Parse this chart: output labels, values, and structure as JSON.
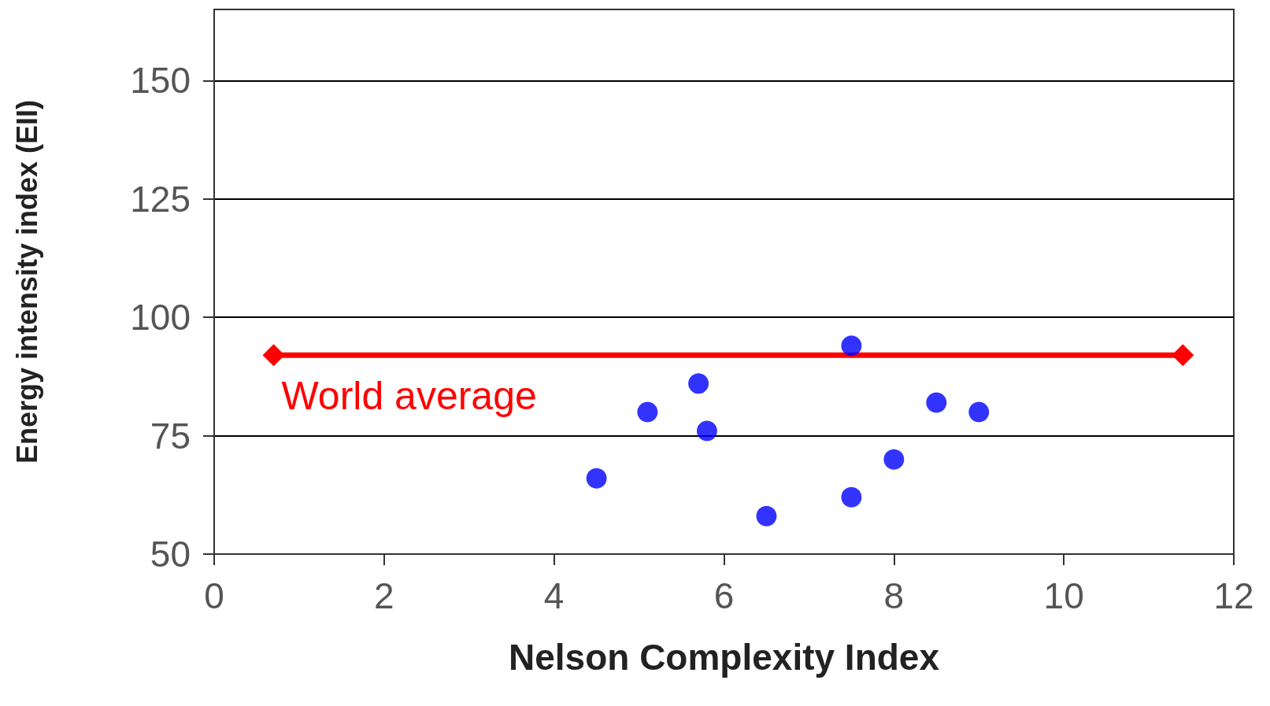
{
  "chart_data": {
    "type": "scatter",
    "xlabel": "Nelson Complexity Index",
    "ylabel": "Energy intensity index (EII)",
    "xlim": [
      0,
      12
    ],
    "xticks": [
      0,
      2,
      4,
      6,
      8,
      10,
      12
    ],
    "ylim": [
      50,
      165
    ],
    "yticks": [
      50,
      75,
      100,
      125,
      150
    ],
    "grid": "y",
    "series": [
      {
        "type": "scatter",
        "color": "#0000ff",
        "marker": "circle",
        "x": [
          4.5,
          5.1,
          5.7,
          5.8,
          6.5,
          7.5,
          7.5,
          8.0,
          8.5,
          9.0
        ],
        "values": [
          66,
          80,
          86,
          76,
          58,
          94,
          62,
          70,
          82,
          80
        ]
      },
      {
        "type": "line",
        "name": "World average",
        "color": "#ff0000",
        "marker": "diamond",
        "x": [
          0.7,
          11.4
        ],
        "values": [
          92,
          92
        ]
      }
    ]
  }
}
